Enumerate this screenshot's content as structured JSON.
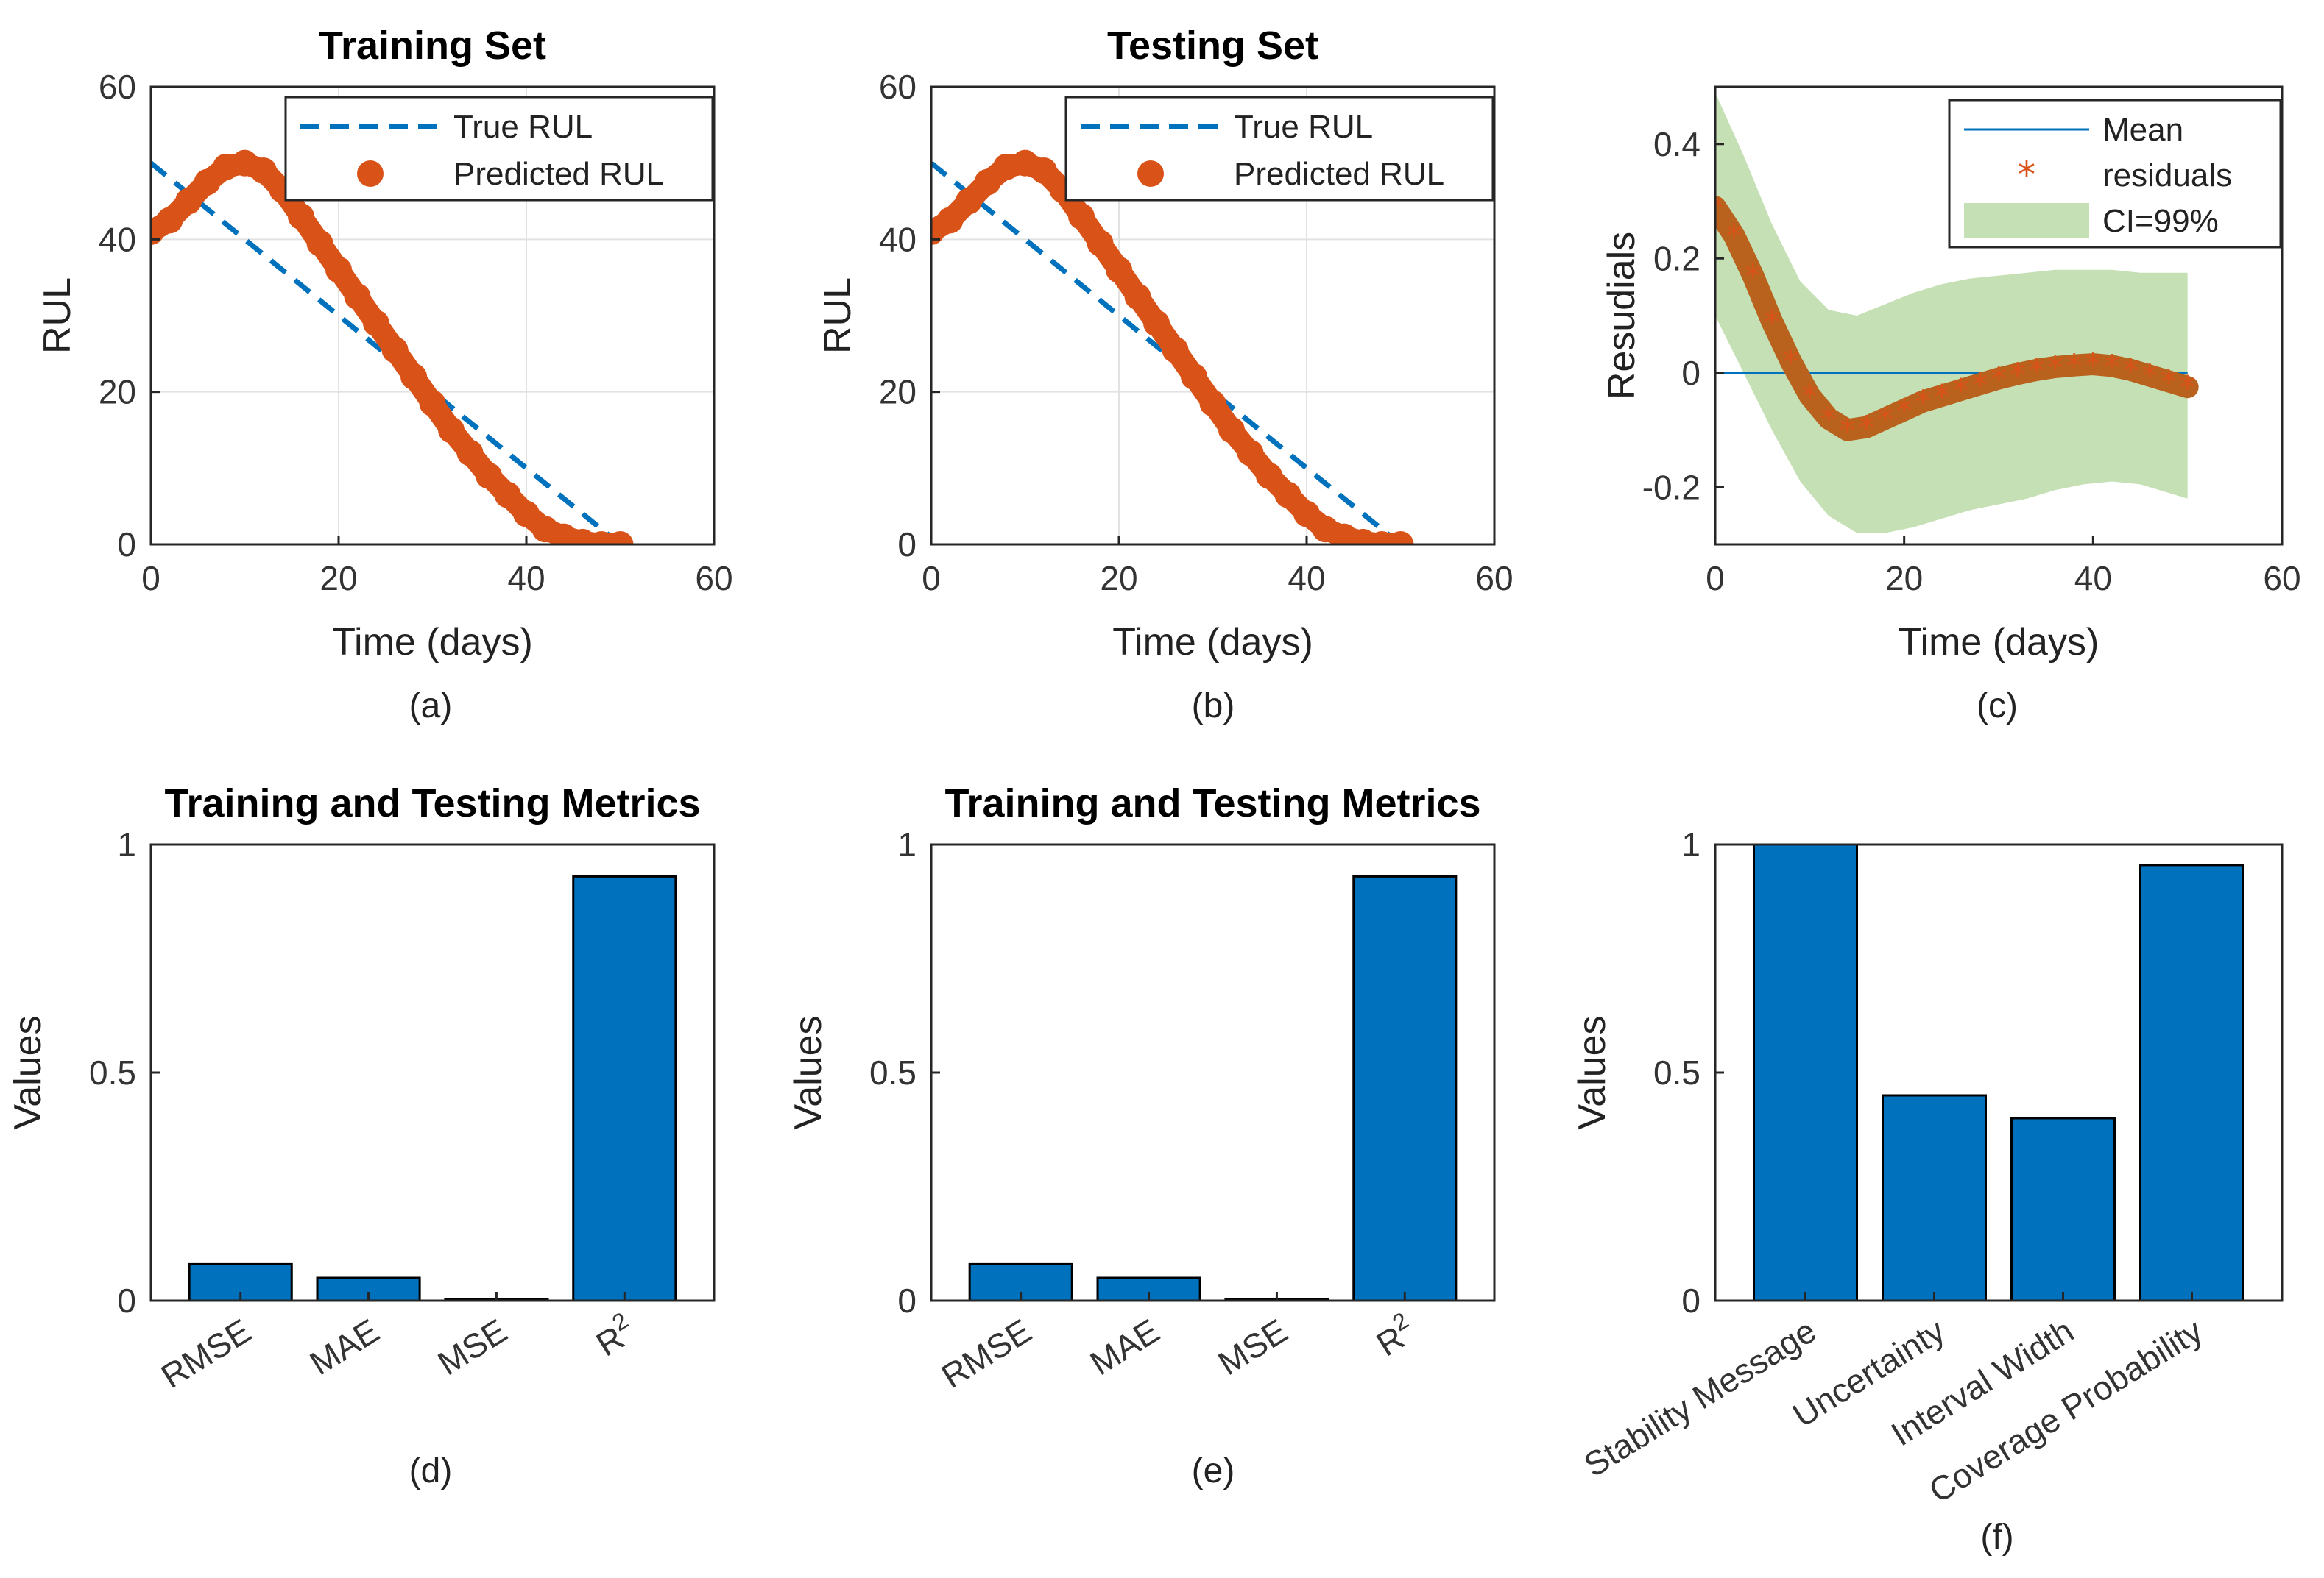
{
  "chart_data": [
    {
      "type": "line",
      "id": "a",
      "title": "Training Set",
      "xlabel": "Time (days)",
      "ylabel": "RUL",
      "xlim": [
        0,
        60
      ],
      "ylim": [
        0,
        60
      ],
      "xticks": [
        0,
        20,
        40,
        60
      ],
      "yticks": [
        0,
        20,
        40,
        60
      ],
      "grid": true,
      "caption": "(a)",
      "legend": {
        "position": "top-right",
        "entries": [
          "True RUL",
          "Predicted RUL"
        ]
      },
      "series": [
        {
          "name": "True RUL",
          "style": "dashed",
          "color": "#0072BD",
          "x": [
            0,
            50
          ],
          "y": [
            50,
            0
          ]
        },
        {
          "name": "Predicted RUL",
          "style": "markers",
          "color": "#D95319",
          "x": [
            0,
            2,
            4,
            6,
            8,
            10,
            12,
            14,
            16,
            18,
            20,
            22,
            24,
            26,
            28,
            30,
            32,
            34,
            36,
            38,
            40,
            42,
            44,
            46,
            48,
            50
          ],
          "y": [
            41,
            42.5,
            45,
            47.5,
            49.5,
            50,
            49,
            46.5,
            43,
            39.5,
            36,
            32.5,
            29,
            25.5,
            22,
            18.5,
            15,
            12,
            9,
            6.5,
            4,
            2,
            1,
            0.3,
            0,
            0
          ]
        }
      ]
    },
    {
      "type": "line",
      "id": "b",
      "title": "Testing Set",
      "xlabel": "Time (days)",
      "ylabel": "RUL",
      "xlim": [
        0,
        60
      ],
      "ylim": [
        0,
        60
      ],
      "xticks": [
        0,
        20,
        40,
        60
      ],
      "yticks": [
        0,
        20,
        40,
        60
      ],
      "grid": true,
      "caption": "(b)",
      "legend": {
        "position": "top-right",
        "entries": [
          "True RUL",
          "Predicted RUL"
        ]
      },
      "series": [
        {
          "name": "True RUL",
          "style": "dashed",
          "color": "#0072BD",
          "x": [
            0,
            50
          ],
          "y": [
            50,
            0
          ]
        },
        {
          "name": "Predicted RUL",
          "style": "markers",
          "color": "#D95319",
          "x": [
            0,
            2,
            4,
            6,
            8,
            10,
            12,
            14,
            16,
            18,
            20,
            22,
            24,
            26,
            28,
            30,
            32,
            34,
            36,
            38,
            40,
            42,
            44,
            46,
            48,
            50
          ],
          "y": [
            41,
            42.5,
            45,
            47.5,
            49.5,
            50,
            49,
            46.5,
            43,
            39.5,
            36,
            32.5,
            29,
            25.5,
            22,
            18.5,
            15,
            12,
            9,
            6.5,
            4,
            2,
            1,
            0.3,
            0,
            0
          ]
        }
      ]
    },
    {
      "type": "line",
      "id": "c",
      "title": "",
      "xlabel": "Time (days)",
      "ylabel": "Resudials",
      "xlim": [
        0,
        60
      ],
      "ylim": [
        -0.3,
        0.5
      ],
      "xticks": [
        0,
        20,
        40,
        60
      ],
      "yticks": [
        -0.2,
        0,
        0.2,
        0.4
      ],
      "yticklabels": [
        "-0.2",
        "0",
        "0.2",
        "0.4"
      ],
      "grid": false,
      "caption": "(c)",
      "legend": {
        "position": "top-right",
        "entries": [
          "Mean",
          "residuals",
          "CI=99%"
        ]
      },
      "series": [
        {
          "name": "Mean",
          "style": "line",
          "color": "#0072BD",
          "x": [
            0,
            50
          ],
          "y": [
            0,
            0
          ]
        },
        {
          "name": "residuals",
          "style": "thick",
          "color": "#D95319",
          "x": [
            0,
            2,
            4,
            6,
            8,
            10,
            12,
            14,
            16,
            18,
            20,
            22,
            24,
            26,
            28,
            30,
            32,
            34,
            36,
            38,
            40,
            42,
            44,
            46,
            48,
            50
          ],
          "y": [
            0.29,
            0.24,
            0.17,
            0.09,
            0.02,
            -0.04,
            -0.08,
            -0.1,
            -0.095,
            -0.08,
            -0.065,
            -0.05,
            -0.04,
            -0.03,
            -0.02,
            -0.01,
            -0.002,
            0.005,
            0.01,
            0.013,
            0.015,
            0.012,
            0.005,
            -0.005,
            -0.015,
            -0.025
          ]
        },
        {
          "name": "CI=99%",
          "style": "band",
          "color": "#A8D08D",
          "x": [
            0,
            3,
            6,
            9,
            12,
            15,
            18,
            21,
            24,
            27,
            30,
            33,
            36,
            39,
            42,
            45,
            48,
            50
          ],
          "lower": [
            0.1,
            0.0,
            -0.1,
            -0.19,
            -0.25,
            -0.28,
            -0.28,
            -0.27,
            -0.255,
            -0.24,
            -0.23,
            -0.22,
            -0.205,
            -0.195,
            -0.19,
            -0.195,
            -0.21,
            -0.22
          ],
          "upper": [
            0.49,
            0.38,
            0.26,
            0.16,
            0.11,
            0.1,
            0.12,
            0.14,
            0.155,
            0.165,
            0.17,
            0.175,
            0.18,
            0.18,
            0.18,
            0.175,
            0.175,
            0.175
          ]
        }
      ]
    },
    {
      "type": "bar",
      "id": "d",
      "title": "Training and Testing Metrics",
      "xlabel": "",
      "ylabel": "Values",
      "ylim": [
        0,
        1
      ],
      "yticks": [
        0,
        0.5,
        1
      ],
      "yticklabels": [
        "0",
        "0.5",
        "1"
      ],
      "caption": "(d)",
      "color": "#0072BD",
      "categories": [
        "RMSE",
        "MAE",
        "MSE",
        "R"
      ],
      "category_superscripts": [
        "",
        "",
        "",
        "2"
      ],
      "values": [
        0.08,
        0.05,
        0.003,
        0.93
      ]
    },
    {
      "type": "bar",
      "id": "e",
      "title": "Training and Testing Metrics",
      "xlabel": "",
      "ylabel": "Values",
      "ylim": [
        0,
        1
      ],
      "yticks": [
        0,
        0.5,
        1
      ],
      "yticklabels": [
        "0",
        "0.5",
        "1"
      ],
      "caption": "(e)",
      "color": "#0072BD",
      "categories": [
        "RMSE",
        "MAE",
        "MSE",
        "R"
      ],
      "category_superscripts": [
        "",
        "",
        "",
        "2"
      ],
      "values": [
        0.08,
        0.05,
        0.003,
        0.93
      ]
    },
    {
      "type": "bar",
      "id": "f",
      "title": "",
      "xlabel": "",
      "ylabel": "Values",
      "ylim": [
        0,
        1
      ],
      "yticks": [
        0,
        0.5,
        1
      ],
      "yticklabels": [
        "0",
        "0.5",
        "1"
      ],
      "caption": "(f)",
      "color": "#0072BD",
      "categories": [
        "Stability Message",
        "Uncertainty",
        "Interval Width",
        "Coverage Probability"
      ],
      "category_superscripts": [
        "",
        "",
        "",
        ""
      ],
      "values": [
        1.0,
        0.45,
        0.4,
        0.955
      ]
    }
  ]
}
